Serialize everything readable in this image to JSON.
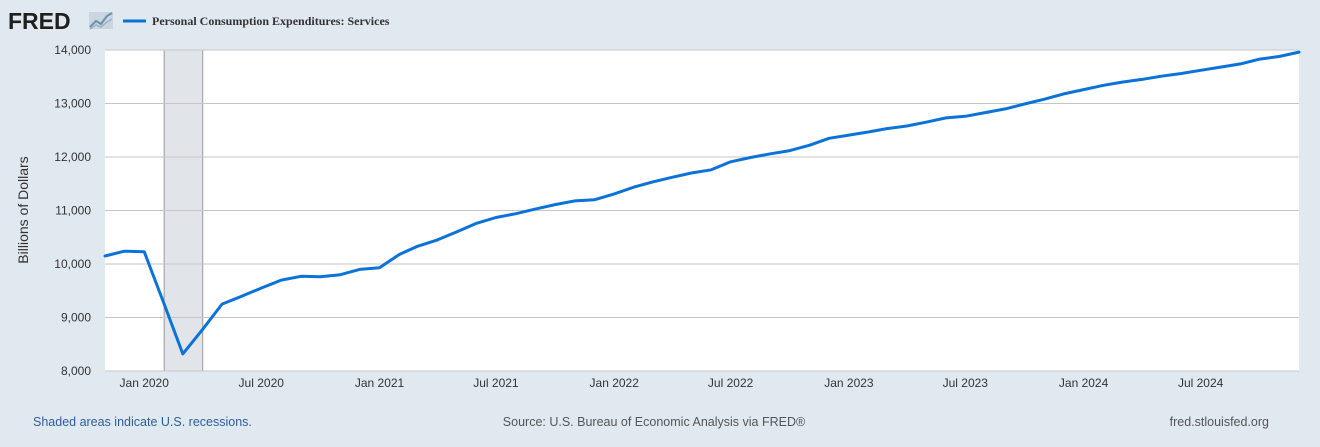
{
  "logo": {
    "text": "FRED",
    "icon": "fred-chart-logo-icon"
  },
  "footer": {
    "recession_note": "Shaded areas indicate U.S. recessions.",
    "source": "Source: U.S. Bureau of Economic Analysis via FRED®",
    "site": "fred.stlouisfed.org"
  },
  "colors": {
    "series": "#0b73d8",
    "plot_background": "#ffffff",
    "page_background": "#e1e9f0",
    "recession_shade": "#e1e5ea",
    "footer_link": "#2e5e9a",
    "footer_text": "#555555"
  },
  "chart_data": {
    "type": "line",
    "title": "",
    "xlabel": "",
    "ylabel": "Billions of Dollars",
    "ylim": [
      8000,
      14000
    ],
    "xlim": [
      "2019-11-01",
      "2024-12-01"
    ],
    "grid": true,
    "legend_position": "top-left",
    "y_ticks": [
      {
        "value": 8000,
        "label": "8,000"
      },
      {
        "value": 9000,
        "label": "9,000"
      },
      {
        "value": 10000,
        "label": "10,000"
      },
      {
        "value": 11000,
        "label": "11,000"
      },
      {
        "value": 12000,
        "label": "12,000"
      },
      {
        "value": 13000,
        "label": "13,000"
      },
      {
        "value": 14000,
        "label": "14,000"
      }
    ],
    "x_ticks": [
      {
        "date": "2020-01-01",
        "label": "Jan 2020"
      },
      {
        "date": "2020-07-01",
        "label": "Jul 2020"
      },
      {
        "date": "2021-01-01",
        "label": "Jan 2021"
      },
      {
        "date": "2021-07-01",
        "label": "Jul 2021"
      },
      {
        "date": "2022-01-01",
        "label": "Jan 2022"
      },
      {
        "date": "2022-07-01",
        "label": "Jul 2022"
      },
      {
        "date": "2023-01-01",
        "label": "Jan 2023"
      },
      {
        "date": "2023-07-01",
        "label": "Jul 2023"
      },
      {
        "date": "2024-01-01",
        "label": "Jan 2024"
      },
      {
        "date": "2024-07-01",
        "label": "Jul 2024"
      }
    ],
    "recessions": [
      {
        "start": "2020-02-01",
        "end": "2020-04-01"
      }
    ],
    "series": [
      {
        "name": "Personal Consumption Expenditures: Services",
        "x": [
          "2019-11-01",
          "2019-12-01",
          "2020-01-01",
          "2020-02-01",
          "2020-03-01",
          "2020-04-01",
          "2020-05-01",
          "2020-06-01",
          "2020-07-01",
          "2020-08-01",
          "2020-09-01",
          "2020-10-01",
          "2020-11-01",
          "2020-12-01",
          "2021-01-01",
          "2021-02-01",
          "2021-03-01",
          "2021-04-01",
          "2021-05-01",
          "2021-06-01",
          "2021-07-01",
          "2021-08-01",
          "2021-09-01",
          "2021-10-01",
          "2021-11-01",
          "2021-12-01",
          "2022-01-01",
          "2022-02-01",
          "2022-03-01",
          "2022-04-01",
          "2022-05-01",
          "2022-06-01",
          "2022-07-01",
          "2022-08-01",
          "2022-09-01",
          "2022-10-01",
          "2022-11-01",
          "2022-12-01",
          "2023-01-01",
          "2023-02-01",
          "2023-03-01",
          "2023-04-01",
          "2023-05-01",
          "2023-06-01",
          "2023-07-01",
          "2023-08-01",
          "2023-09-01",
          "2023-10-01",
          "2023-11-01",
          "2023-12-01",
          "2024-01-01",
          "2024-02-01",
          "2024-03-01",
          "2024-04-01",
          "2024-05-01",
          "2024-06-01",
          "2024-07-01",
          "2024-08-01",
          "2024-09-01",
          "2024-10-01",
          "2024-11-01",
          "2024-12-01"
        ],
        "values": [
          10150,
          10240,
          10230,
          9250,
          8320,
          8780,
          9250,
          9400,
          9550,
          9700,
          9770,
          9760,
          9800,
          9900,
          9930,
          10180,
          10330,
          10450,
          10600,
          10760,
          10870,
          10940,
          11030,
          11110,
          11180,
          11200,
          11310,
          11440,
          11530,
          11620,
          11700,
          11760,
          11910,
          11990,
          12060,
          12120,
          12220,
          12350,
          12410,
          12470,
          12530,
          12580,
          12650,
          12730,
          12760,
          12830,
          12900,
          12990,
          13080,
          13180,
          13260,
          13340,
          13400,
          13450,
          13510,
          13560,
          13620,
          13680,
          13740,
          13830,
          13880,
          13960
        ]
      }
    ]
  }
}
